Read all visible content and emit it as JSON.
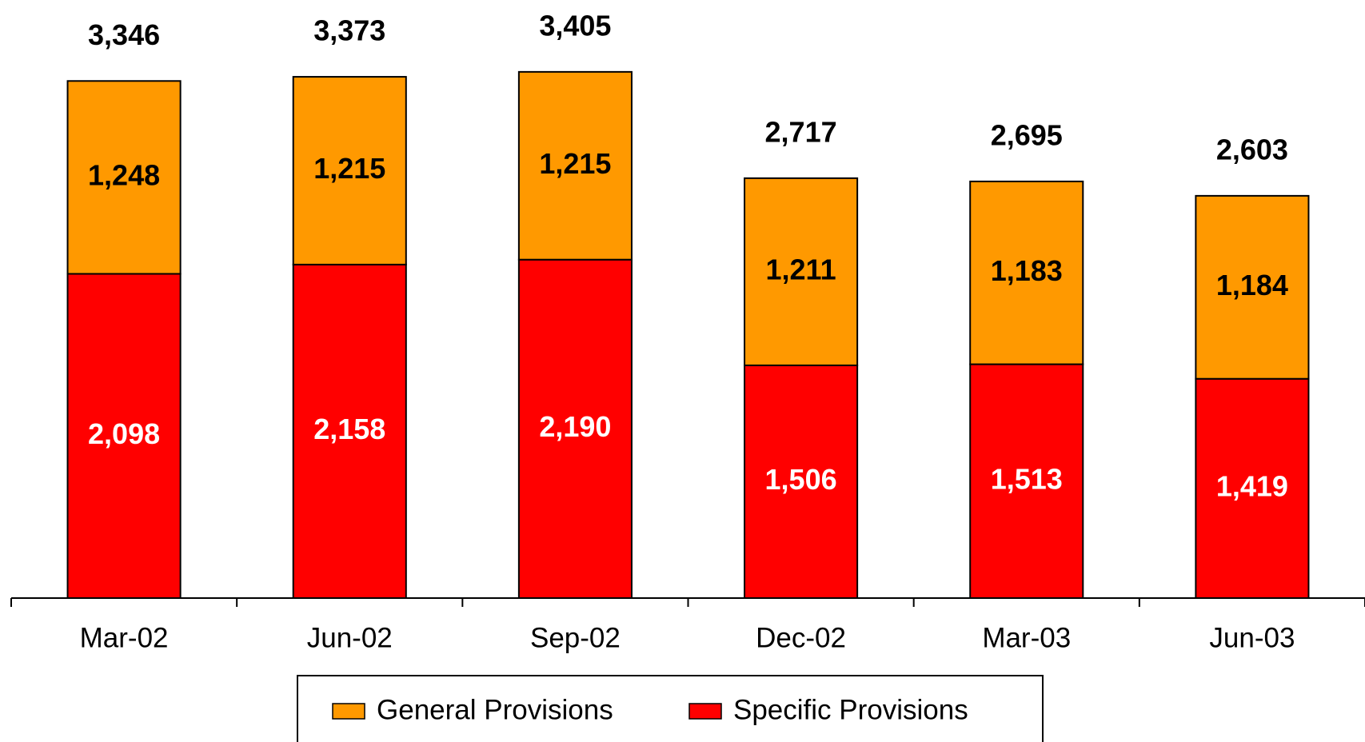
{
  "chart_data": {
    "type": "stacked_bar",
    "categories": [
      "Mar-02",
      "Jun-02",
      "Sep-02",
      "Dec-02",
      "Mar-03",
      "Jun-03"
    ],
    "series": [
      {
        "name": "Specific Provisions",
        "color": "#ff0000",
        "values": [
          2098,
          2158,
          2190,
          1506,
          1513,
          1419
        ],
        "value_labels": [
          "2,098",
          "2,158",
          "2,190",
          "1,506",
          "1,513",
          "1,419"
        ]
      },
      {
        "name": "General Provisions",
        "color": "#ff9900",
        "values": [
          1248,
          1215,
          1215,
          1211,
          1183,
          1184
        ],
        "value_labels": [
          "1,248",
          "1,215",
          "1,215",
          "1,211",
          "1,183",
          "1,184"
        ]
      }
    ],
    "totals": {
      "values": [
        3346,
        3373,
        3405,
        2717,
        2695,
        2603
      ],
      "value_labels": [
        "3,346",
        "3,373",
        "3,405",
        "2,717",
        "2,695",
        "2,603"
      ]
    },
    "ylim": [
      0,
      3870
    ]
  }
}
